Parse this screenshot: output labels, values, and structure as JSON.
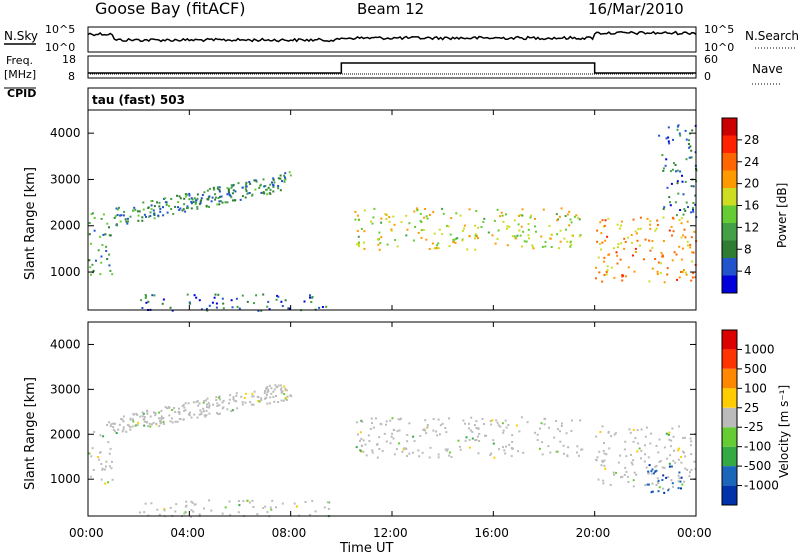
{
  "header": {
    "station": "Goose Bay (fitACF)",
    "beam": "Beam 12",
    "date": "16/Mar/2010"
  },
  "strip_labels": {
    "nsky": "N.Sky",
    "nsky_ticks": [
      "10^5",
      "10^0"
    ],
    "nsearch": "N.Search",
    "nsearch_ticks": [
      "10^5",
      "10^0"
    ],
    "freq_line1": "Freq.",
    "freq_line2": "[MHz]",
    "freq_ticks": [
      "18",
      "8"
    ],
    "nave": "Nave",
    "nave_ticks": [
      "60",
      "0"
    ],
    "cpid": "CPID",
    "cpid_text": "tau (fast) 503"
  },
  "axes": {
    "xlabel": "Time UT",
    "x_ticks": [
      "00:00",
      "04:00",
      "08:00",
      "12:00",
      "16:00",
      "20:00",
      "00:00"
    ],
    "ylabel": "Slant Range [km]",
    "y_ticks": [
      "1000",
      "2000",
      "3000",
      "4000"
    ]
  },
  "power_scale": {
    "label": "Power [dB]",
    "ticks": [
      "4",
      "8",
      "12",
      "16",
      "20",
      "24",
      "28"
    ],
    "colors": [
      "#0000dd",
      "#2255cc",
      "#2e7d32",
      "#43a047",
      "#66cc33",
      "#ccdd22",
      "#ff9900",
      "#ff6600",
      "#ff2200",
      "#cc0000"
    ]
  },
  "velocity_scale": {
    "label": "Velocity [m s⁻¹]",
    "ticks": [
      "1000",
      "500",
      "100",
      "25",
      "-25",
      "-100",
      "-500",
      "-1000"
    ],
    "colors": [
      "#0033aa",
      "#1a66bb",
      "#33aa44",
      "#66cc33",
      "#bbbbbb",
      "#ffcc00",
      "#ff8800",
      "#ff3300",
      "#dd0000"
    ]
  },
  "chart_data": [
    {
      "type": "heatmap",
      "title": "Power",
      "x_range_hours": [
        0,
        24
      ],
      "y_range_km": [
        180,
        4500
      ],
      "quantity": "Power [dB]",
      "scatter_regions": [
        {
          "t": [
            0.0,
            1.0
          ],
          "r": [
            900,
            2300
          ],
          "dB": 10
        },
        {
          "t": [
            1.0,
            8.0
          ],
          "r": [
            2000,
            3300
          ],
          "dB": 8
        },
        {
          "t": [
            2.0,
            9.5
          ],
          "r": [
            180,
            550
          ],
          "dB": 6
        },
        {
          "t": [
            10.5,
            19.5
          ],
          "r": [
            1500,
            2400
          ],
          "dB": 16
        },
        {
          "t": [
            20.0,
            24.0
          ],
          "r": [
            800,
            2200
          ],
          "dB": 20
        },
        {
          "t": [
            22.5,
            24.0
          ],
          "r": [
            2200,
            4200
          ],
          "dB": 6
        }
      ]
    },
    {
      "type": "heatmap",
      "title": "Velocity",
      "x_range_hours": [
        0,
        24
      ],
      "y_range_km": [
        180,
        4500
      ],
      "quantity": "Velocity [m s⁻¹]",
      "scatter_regions": [
        {
          "t": [
            0.0,
            1.0
          ],
          "r": [
            900,
            2300
          ],
          "v": 0
        },
        {
          "t": [
            1.0,
            8.0
          ],
          "r": [
            2000,
            3300
          ],
          "v": 0
        },
        {
          "t": [
            2.0,
            9.5
          ],
          "r": [
            180,
            550
          ],
          "v": 0
        },
        {
          "t": [
            10.5,
            19.5
          ],
          "r": [
            1500,
            2400
          ],
          "v": 0
        },
        {
          "t": [
            20.0,
            24.0
          ],
          "r": [
            800,
            2200
          ],
          "v": 0
        },
        {
          "t": [
            22.0,
            23.5
          ],
          "r": [
            700,
            1400
          ],
          "v": 700
        }
      ]
    }
  ],
  "nave_step": {
    "t_on": 10.0,
    "t_off": 20.0
  }
}
